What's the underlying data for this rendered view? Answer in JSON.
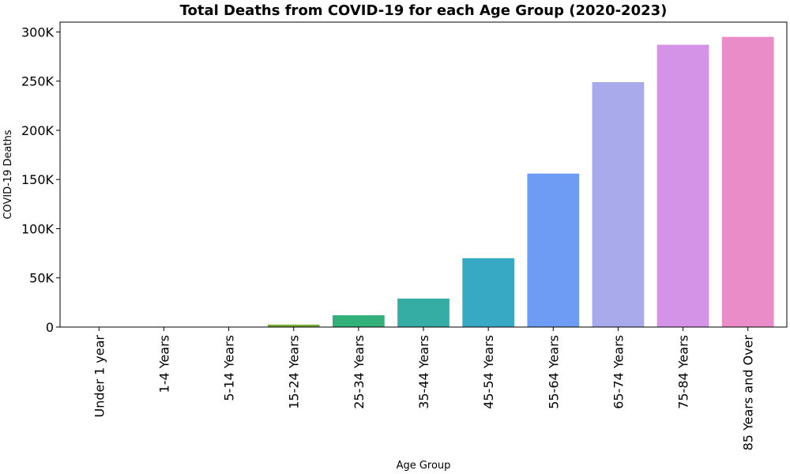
{
  "chart_data": {
    "type": "bar",
    "title": "Total Deaths from COVID-19 for each Age Group (2020-2023)",
    "xlabel": "Age Group",
    "ylabel": "COVID-19 Deaths",
    "categories": [
      "Under 1 year",
      "1-4 Years",
      "5-14 Years",
      "15-24 Years",
      "25-34 Years",
      "35-44 Years",
      "45-54 Years",
      "55-64 Years",
      "65-74 Years",
      "75-84 Years",
      "85 Years and Over"
    ],
    "values": [
      350,
      200,
      400,
      2500,
      12000,
      29000,
      70000,
      156000,
      249000,
      287000,
      295000
    ],
    "colors": [
      "#f77189",
      "#dc8932",
      "#ae9d31",
      "#77ab31",
      "#33b07a",
      "#36ada4",
      "#38a9c5",
      "#6e9bf4",
      "#a9aaeb",
      "#d593e8",
      "#e98cc8"
    ],
    "ylim": [
      0,
      310000
    ],
    "yticks": [
      0,
      50000,
      100000,
      150000,
      200000,
      250000,
      300000
    ],
    "ytick_labels": [
      "0",
      "50K",
      "100K",
      "150K",
      "200K",
      "250K",
      "300K"
    ],
    "grid": false,
    "legend": "none"
  }
}
